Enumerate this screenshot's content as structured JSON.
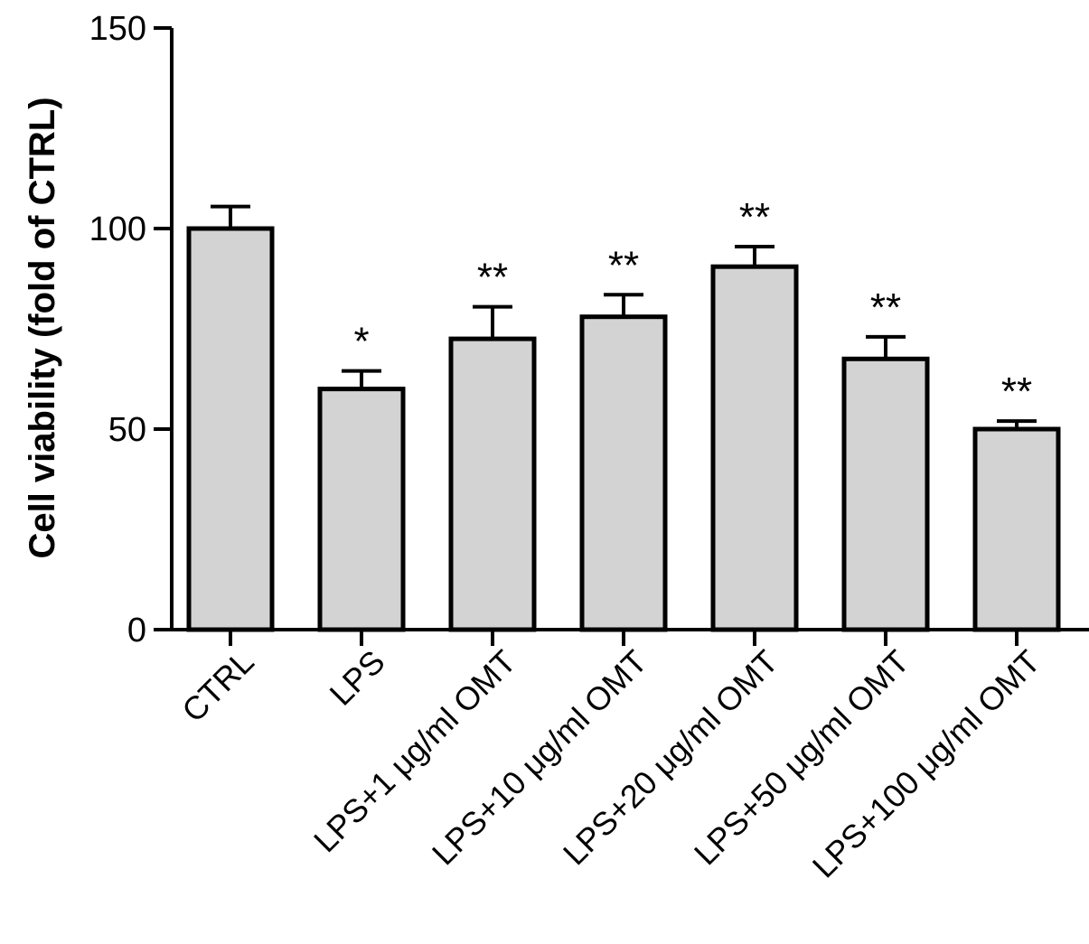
{
  "chart_data": {
    "type": "bar",
    "title": "",
    "xlabel": "",
    "ylabel": "Cell viability (fold of CTRL)",
    "ylim": [
      0,
      150
    ],
    "yticks": [
      0,
      50,
      100,
      150
    ],
    "categories": [
      "CTRL",
      "LPS",
      "LPS+1 μg/ml OMT",
      "LPS+10 μg/ml OMT",
      "LPS+20 μg/ml OMT",
      "LPS+50 μg/ml OMT",
      "LPS+100 μg/ml OMT"
    ],
    "values": [
      100,
      60,
      72.5,
      78,
      90.5,
      67.5,
      50
    ],
    "errors": [
      5.5,
      4.5,
      8,
      5.5,
      5,
      5.5,
      2
    ],
    "significance": [
      "",
      "*",
      "**",
      "**",
      "**",
      "**",
      "**"
    ],
    "grid": false,
    "bar_color": "#d3d3d3"
  }
}
